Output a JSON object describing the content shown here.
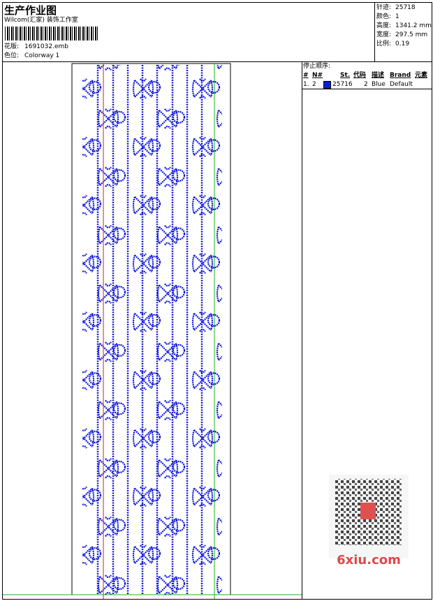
{
  "header": {
    "title": "生产作业图",
    "studio": "Wilcom(汇家) 装饰工作室",
    "design_label": "花版:",
    "design": "1691032.emb",
    "colorway_label": "色位:",
    "colorway": "Colorway 1"
  },
  "info": [
    {
      "label": "针迹:",
      "value": "25718"
    },
    {
      "label": "颜色:",
      "value": "1"
    },
    {
      "label": "高度:",
      "value": "1341.2 mm"
    },
    {
      "label": "宽度:",
      "value": "297.5 mm"
    },
    {
      "label": "比例:",
      "value": "0.19"
    }
  ],
  "stop_sequence": {
    "title": "停止顺序:",
    "headers": [
      "#",
      "N#",
      "St.",
      "代码",
      "描述",
      "Brand",
      "元素"
    ],
    "rows": [
      [
        "1.",
        "2",
        "25716",
        "2",
        "Blue",
        "Default",
        ""
      ]
    ]
  },
  "watermark": "6xiu.com"
}
